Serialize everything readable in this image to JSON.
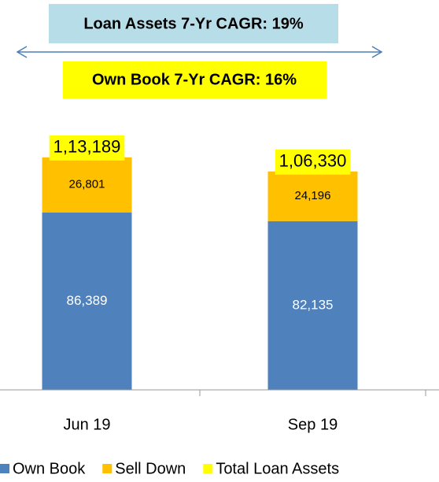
{
  "chart_data": {
    "type": "stacked_bar",
    "annotations": [
      "Loan Assets 7-Yr CAGR: 19%",
      "Own Book 7-Yr CAGR: 16%"
    ],
    "categories": [
      "Jun 19",
      "Sep 19"
    ],
    "series": [
      {
        "name": "Own Book",
        "color": "#4f81bd",
        "values": [
          86389,
          82135
        ],
        "value_labels": [
          "86,389",
          "82,135"
        ]
      },
      {
        "name": "Sell Down",
        "color": "#ffc000",
        "values": [
          26801,
          24196
        ],
        "value_labels": [
          "26,801",
          "24,196"
        ]
      }
    ],
    "total": {
      "name": "Total Loan Assets",
      "color": "#ffff00",
      "values": [
        113189,
        106330
      ],
      "value_labels": [
        "1,13,189",
        "1,06,330"
      ]
    },
    "ylim": [
      0,
      120000
    ]
  }
}
